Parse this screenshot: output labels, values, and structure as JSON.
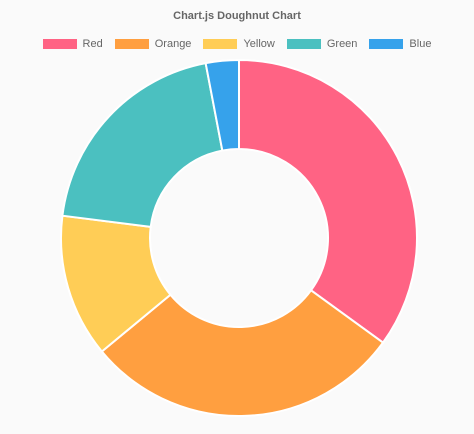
{
  "chart_data": {
    "type": "doughnut",
    "title": "Chart.js Doughnut Chart",
    "legend_position": "top",
    "categories": [
      "Red",
      "Orange",
      "Yellow",
      "Green",
      "Blue"
    ],
    "values": [
      35,
      29,
      13,
      20,
      3
    ],
    "colors": [
      "#ff6384",
      "#ff9f40",
      "#ffcd56",
      "#4bc0c0",
      "#36a2eb"
    ],
    "cutout": 0.5
  }
}
